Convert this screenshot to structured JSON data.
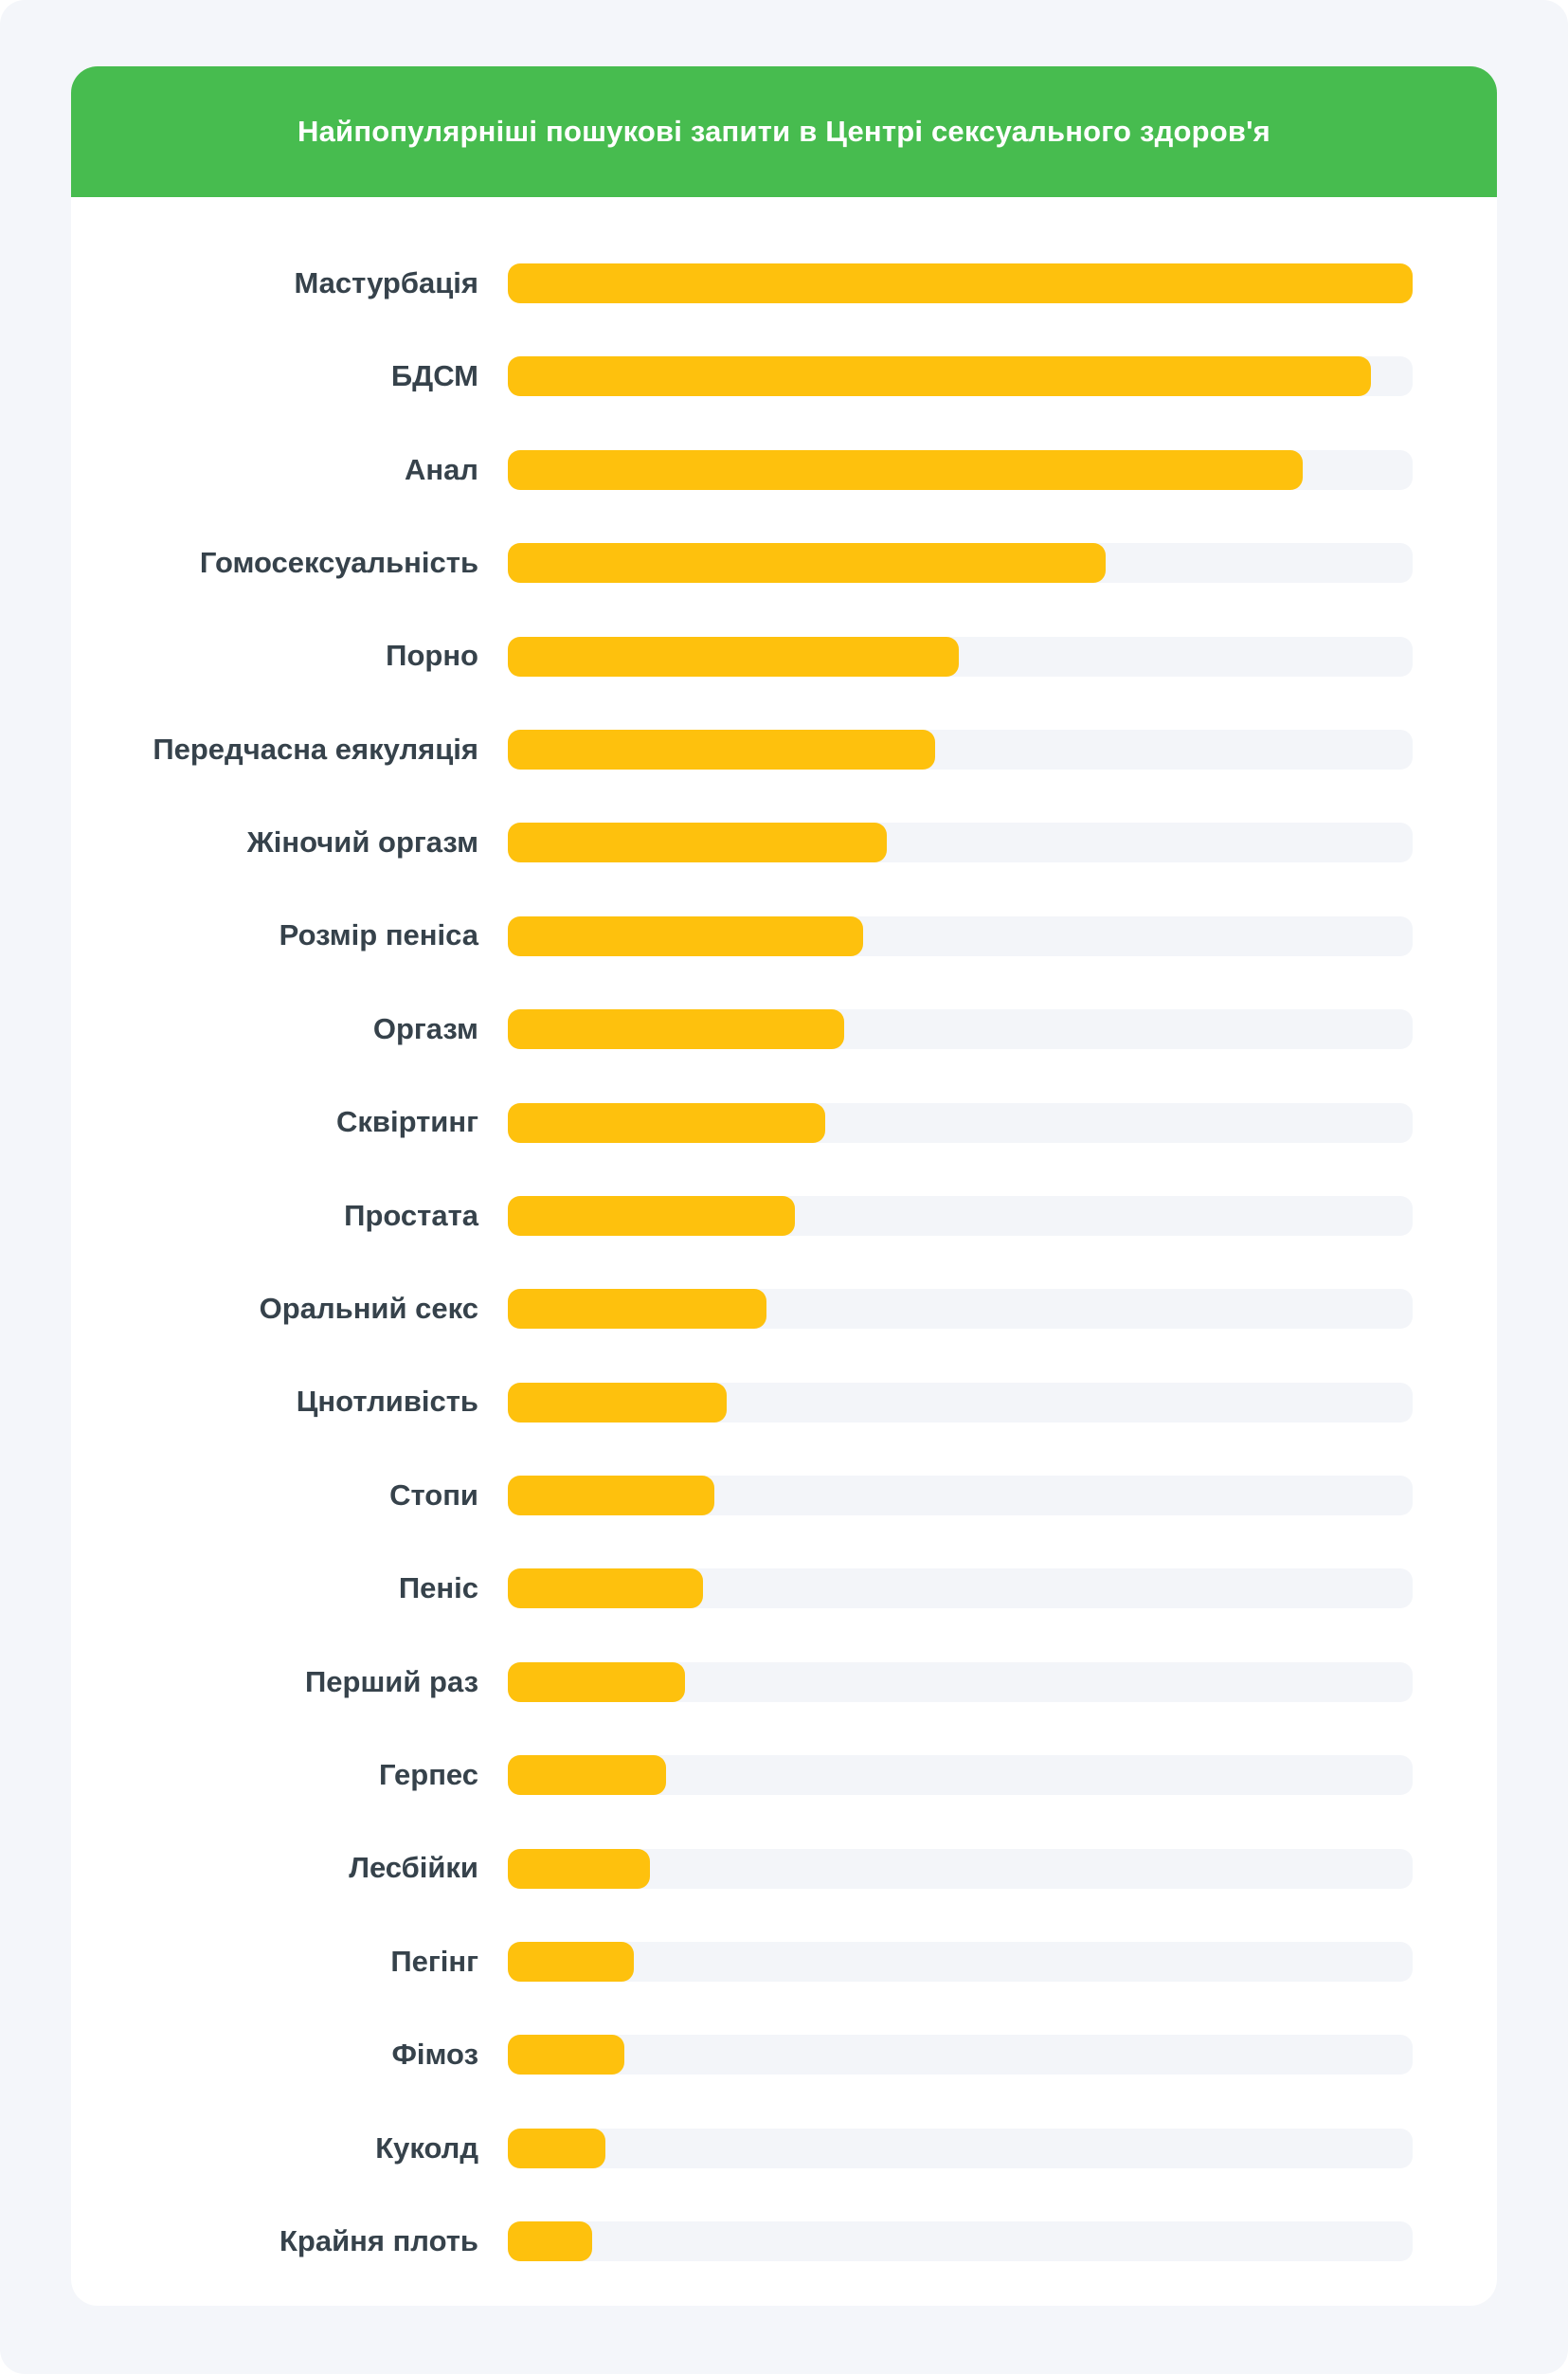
{
  "header": {
    "title": "Найпопулярніші пошукові запити в Центрі сексуального здоров'я"
  },
  "chart_data": {
    "type": "bar",
    "orientation": "horizontal",
    "title": "Найпопулярніші пошукові запити в Центрі сексуального здоров'я",
    "categories": [
      "Мастурбація",
      "БДСМ",
      "Анал",
      "Гомосексуальність",
      "Порно",
      "Передчасна еякуляція",
      "Жіночий оргазм",
      "Розмір пеніса",
      "Оргазм",
      "Сквіртинг",
      "Простата",
      "Оральний секс",
      "Цнотливість",
      "Стопи",
      "Пеніс",
      "Перший раз",
      "Герпес",
      "Лесбійки",
      "Пегінг",
      "Фімоз",
      "Куколд",
      "Крайня плоть"
    ],
    "values_percent_of_max": [
      100,
      95.4,
      87.9,
      66.1,
      49.8,
      47.2,
      41.9,
      39.3,
      37.2,
      35.1,
      31.7,
      28.6,
      24.2,
      22.8,
      21.6,
      19.6,
      17.5,
      15.7,
      13.9,
      12.9,
      10.8,
      9.3
    ],
    "value_axis_visible": false,
    "gridlines": false,
    "legend": false,
    "ylim": [
      0,
      100
    ]
  },
  "colors": {
    "header_green": "#47BC4F",
    "bar_yellow": "#FEC10D",
    "bar_track": "#F3F5F9",
    "page_background": "#F4F6FA",
    "card_background": "#FFFFFF",
    "title_text": "#FFFFFF",
    "label_text": "#36424B"
  }
}
